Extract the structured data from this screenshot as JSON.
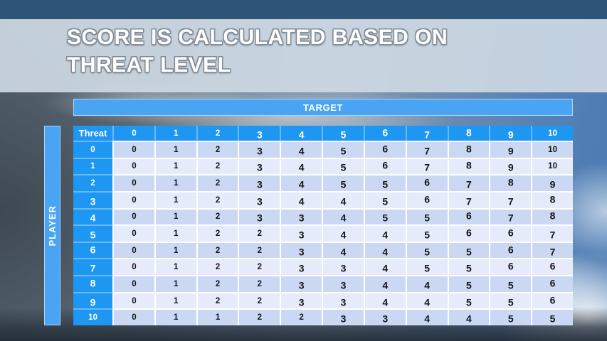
{
  "slide_title": {
    "line1": "SCORE IS CALCULATED BASED ON",
    "line2": "THREAT LEVEL"
  },
  "axes": {
    "target": "TARGET",
    "player": "PLAYER"
  },
  "chart_data": {
    "type": "table",
    "title": "SCORE IS CALCULATED BASED ON THREAT LEVEL",
    "x_axis_label": "TARGET",
    "y_axis_label": "PLAYER",
    "corner_label": "Threat",
    "columns": [
      "0",
      "1",
      "2",
      "3",
      "4",
      "5",
      "6",
      "7",
      "8",
      "9",
      "10"
    ],
    "rows": [
      {
        "threat": "0",
        "values": [
          0,
          1,
          2,
          3,
          4,
          5,
          6,
          7,
          8,
          9,
          10
        ]
      },
      {
        "threat": "1",
        "values": [
          0,
          1,
          2,
          3,
          4,
          5,
          6,
          7,
          8,
          9,
          10
        ]
      },
      {
        "threat": "2",
        "values": [
          0,
          1,
          2,
          3,
          4,
          5,
          5,
          6,
          7,
          8,
          9
        ]
      },
      {
        "threat": "3",
        "values": [
          0,
          1,
          2,
          3,
          4,
          4,
          5,
          6,
          7,
          7,
          8
        ]
      },
      {
        "threat": "4",
        "values": [
          0,
          1,
          2,
          3,
          3,
          4,
          5,
          5,
          6,
          7,
          8
        ]
      },
      {
        "threat": "5",
        "values": [
          0,
          1,
          2,
          2,
          3,
          4,
          4,
          5,
          6,
          6,
          7
        ]
      },
      {
        "threat": "6",
        "values": [
          0,
          1,
          2,
          2,
          3,
          4,
          4,
          5,
          5,
          6,
          7
        ]
      },
      {
        "threat": "7",
        "values": [
          0,
          1,
          2,
          2,
          3,
          3,
          4,
          5,
          5,
          6,
          6
        ]
      },
      {
        "threat": "8",
        "values": [
          0,
          1,
          2,
          2,
          3,
          3,
          4,
          4,
          5,
          5,
          6
        ]
      },
      {
        "threat": "9",
        "values": [
          0,
          1,
          2,
          2,
          3,
          3,
          4,
          4,
          5,
          5,
          6
        ]
      },
      {
        "threat": "10",
        "values": [
          0,
          1,
          1,
          2,
          2,
          3,
          3,
          4,
          4,
          5,
          5
        ]
      }
    ]
  },
  "colors": {
    "header_blue": "#1e97f3",
    "band_blue": "#4aa4f4",
    "divider_blue": "#6db9f7",
    "row_even_bg": "#cbd8f4",
    "row_odd_bg": "#e5ebfb",
    "cell_text": "#141414",
    "top_strip": "#2e5477",
    "title_text": "#ffffff"
  }
}
